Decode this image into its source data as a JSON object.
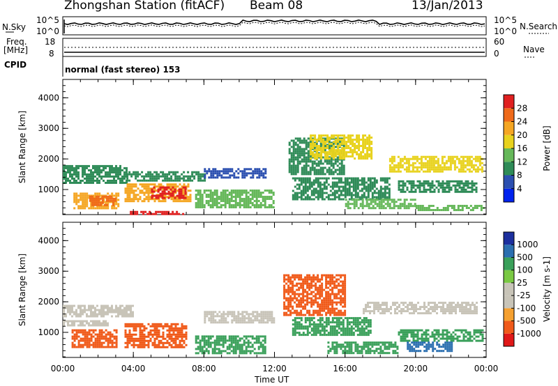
{
  "header": {
    "station": "Zhongshan Station (fitACF)",
    "beam": "Beam 08",
    "date": "13/Jan/2013"
  },
  "top_panels": {
    "nsky_label": "N.Sky",
    "nsearch_label": "N.Search",
    "freq_label": "Freq.",
    "freq_unit": "[MHz]",
    "nave_label": "Nave",
    "cpid_label": "CPID",
    "cpid_text": "normal (fast stereo) 153",
    "noise_ticks_left": [
      "10^5",
      "10^0"
    ],
    "noise_ticks_right": [
      "10^5",
      "10^0"
    ],
    "freq_ticks": [
      "18",
      "8"
    ],
    "nave_ticks": [
      "60",
      "0"
    ]
  },
  "colors": {
    "power_scale": [
      "#0022ee",
      "#2b4fb0",
      "#2e8b57",
      "#66b85a",
      "#e8d21e",
      "#f5a623",
      "#ef6a1a",
      "#e02020"
    ],
    "velocity_scale": [
      "#e01818",
      "#f05a1a",
      "#f5a030",
      "#c8c4b8",
      "#c8c4b8",
      "#7ac943",
      "#3aa05a",
      "#2b6fb0",
      "#1c2f9e"
    ]
  },
  "chart_data": [
    {
      "type": "heatmap",
      "name": "power",
      "xlabel": "Time UT",
      "ylabel": "Slant Range [km]",
      "x_ticks": [
        "00:00",
        "04:00",
        "08:00",
        "12:00",
        "16:00",
        "20:00",
        "00:00"
      ],
      "x_range_hours": [
        0,
        24
      ],
      "y_ticks": [
        1000,
        2000,
        3000,
        4000
      ],
      "ylim": [
        180,
        4600
      ],
      "colorbar_label": "Power [dB]",
      "colorbar_ticks": [
        4,
        8,
        12,
        16,
        20,
        24,
        28
      ],
      "colorbar_range": [
        0,
        30
      ],
      "regions": [
        {
          "t": [
            0.0,
            3.6
          ],
          "r": [
            1200,
            1800
          ],
          "v": 9
        },
        {
          "t": [
            0.6,
            3.2
          ],
          "r": [
            400,
            900
          ],
          "v": 20
        },
        {
          "t": [
            1.5,
            3.0
          ],
          "r": [
            500,
            800
          ],
          "v": 24
        },
        {
          "t": [
            3.5,
            7.2
          ],
          "r": [
            600,
            1200
          ],
          "v": 22
        },
        {
          "t": [
            5.0,
            6.9
          ],
          "r": [
            700,
            1100
          ],
          "v": 27
        },
        {
          "t": [
            3.6,
            8.0
          ],
          "r": [
            1300,
            1600
          ],
          "v": 8
        },
        {
          "t": [
            7.5,
            12.0
          ],
          "r": [
            400,
            1000
          ],
          "v": 12
        },
        {
          "t": [
            8.0,
            11.5
          ],
          "r": [
            1400,
            1700
          ],
          "v": 6
        },
        {
          "t": [
            12.8,
            16.0
          ],
          "r": [
            1500,
            2700
          ],
          "v": 10
        },
        {
          "t": [
            14.0,
            17.5
          ],
          "r": [
            2000,
            2800
          ],
          "v": 16
        },
        {
          "t": [
            13.0,
            18.5
          ],
          "r": [
            700,
            1400
          ],
          "v": 9
        },
        {
          "t": [
            16.0,
            20.0
          ],
          "r": [
            400,
            700
          ],
          "v": 12
        },
        {
          "t": [
            18.5,
            23.8
          ],
          "r": [
            1600,
            2100
          ],
          "v": 17
        },
        {
          "t": [
            19.0,
            23.5
          ],
          "r": [
            900,
            1300
          ],
          "v": 8
        },
        {
          "t": [
            20.0,
            23.8
          ],
          "r": [
            300,
            500
          ],
          "v": 14
        },
        {
          "t": [
            3.8,
            6.8
          ],
          "r": [
            200,
            300
          ],
          "v": 28
        }
      ]
    },
    {
      "type": "heatmap",
      "name": "velocity",
      "xlabel": "Time UT",
      "ylabel": "Slant Range [km]",
      "x_ticks": [
        "00:00",
        "04:00",
        "08:00",
        "12:00",
        "16:00",
        "20:00",
        "00:00"
      ],
      "x_range_hours": [
        0,
        24
      ],
      "y_ticks": [
        1000,
        2000,
        3000,
        4000
      ],
      "ylim": [
        180,
        4600
      ],
      "colorbar_label": "Velocity [m s-1]",
      "colorbar_ticks": [
        1000,
        500,
        100,
        25,
        -25,
        -100,
        -500,
        -1000
      ],
      "regions": [
        {
          "t": [
            0.0,
            2.5
          ],
          "r": [
            1200,
            1400
          ],
          "v": 0
        },
        {
          "t": [
            0.0,
            4.0
          ],
          "r": [
            1500,
            1900
          ],
          "v": 0
        },
        {
          "t": [
            0.5,
            3.0
          ],
          "r": [
            500,
            1100
          ],
          "v": -200
        },
        {
          "t": [
            3.5,
            7.0
          ],
          "r": [
            500,
            1300
          ],
          "v": -400
        },
        {
          "t": [
            7.5,
            11.5
          ],
          "r": [
            300,
            900
          ],
          "v": 150
        },
        {
          "t": [
            8.0,
            12.0
          ],
          "r": [
            1300,
            1700
          ],
          "v": 0
        },
        {
          "t": [
            12.5,
            16.0
          ],
          "r": [
            1600,
            2900
          ],
          "v": -200
        },
        {
          "t": [
            13.0,
            17.5
          ],
          "r": [
            900,
            1500
          ],
          "v": 200
        },
        {
          "t": [
            15.0,
            19.0
          ],
          "r": [
            300,
            700
          ],
          "v": 200
        },
        {
          "t": [
            17.0,
            23.5
          ],
          "r": [
            1600,
            2000
          ],
          "v": 0
        },
        {
          "t": [
            19.0,
            23.8
          ],
          "r": [
            700,
            1100
          ],
          "v": 300
        },
        {
          "t": [
            19.5,
            22.0
          ],
          "r": [
            400,
            700
          ],
          "v": 600
        }
      ]
    }
  ]
}
